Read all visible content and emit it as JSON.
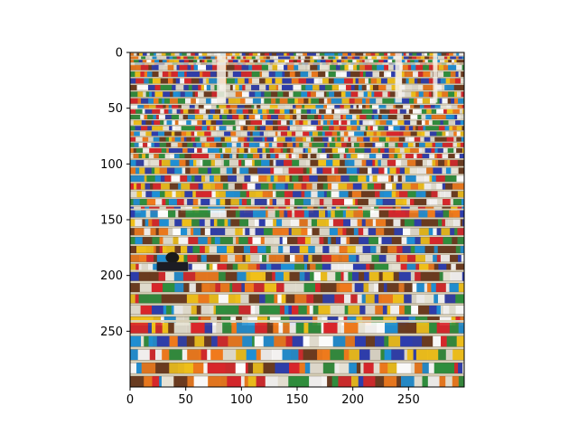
{
  "chart_data": {
    "type": "image",
    "image_shape": [
      300,
      300
    ],
    "xlim": [
      0,
      300
    ],
    "ylim": [
      300,
      0
    ],
    "x_ticks": [
      0,
      50,
      100,
      150,
      200,
      250
    ],
    "y_ticks": [
      0,
      50,
      100,
      150,
      200,
      250
    ],
    "x_tick_labels": [
      "0",
      "50",
      "100",
      "150",
      "200",
      "250"
    ],
    "y_tick_labels": [
      "0",
      "50",
      "100",
      "150",
      "200",
      "250"
    ],
    "grid": false,
    "image_content": "photo-of-supermarket-shelves-icon",
    "image_palette": [
      "#2d3dae",
      "#d9262b",
      "#f2c21a",
      "#e8e4d6",
      "#2e8f3d",
      "#f07a1c",
      "#ffffff",
      "#6b3a1e",
      "#1e90d6"
    ]
  }
}
